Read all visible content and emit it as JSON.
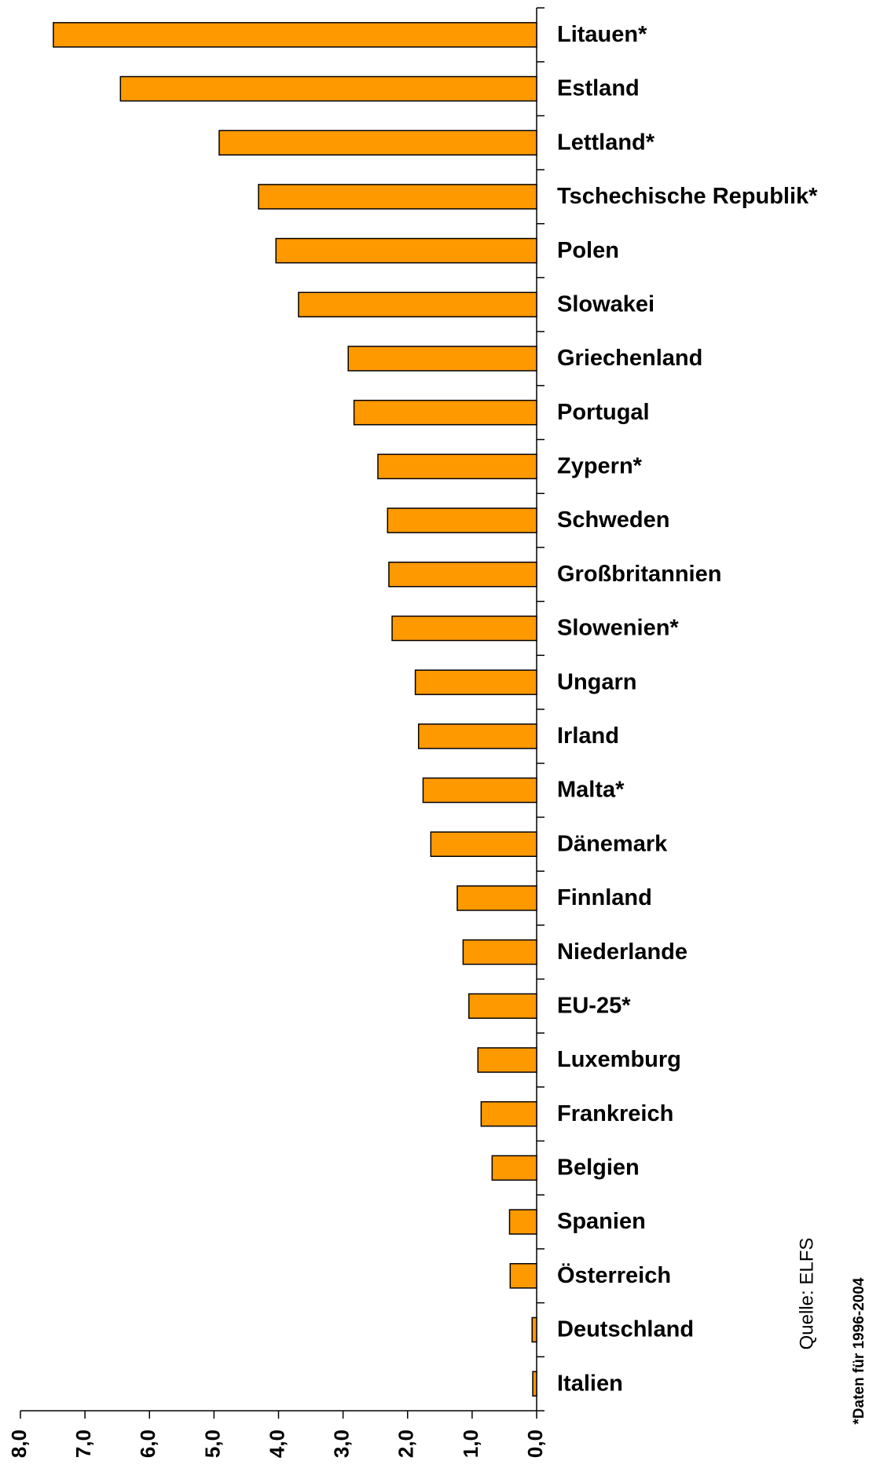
{
  "chart_data": {
    "type": "bar",
    "orientation": "horizontal",
    "reversed_x": true,
    "categories": [
      "Litauen*",
      "Estland",
      "Lettland*",
      "Tschechische Republik*",
      "Polen",
      "Slowakei",
      "Griechenland",
      "Portugal",
      "Zypern*",
      "Schweden",
      "Großbritannien",
      "Slowenien*",
      "Ungarn",
      "Irland",
      "Malta*",
      "Dänemark",
      "Finnland",
      "Niederlande",
      "EU-25*",
      "Luxemburg",
      "Frankreich",
      "Belgien",
      "Spanien",
      "Österreich",
      "Deutschland",
      "Italien"
    ],
    "values": [
      7.49,
      6.45,
      4.92,
      4.31,
      4.04,
      3.69,
      2.92,
      2.83,
      2.46,
      2.31,
      2.29,
      2.24,
      1.88,
      1.83,
      1.76,
      1.64,
      1.23,
      1.14,
      1.05,
      0.91,
      0.86,
      0.69,
      0.42,
      0.41,
      0.07,
      0.06
    ],
    "color": "#ff9900",
    "xlim": [
      0,
      8
    ],
    "xticks": [
      {
        "value": 8,
        "label": "8,0"
      },
      {
        "value": 7,
        "label": "7,0"
      },
      {
        "value": 6,
        "label": "6,0"
      },
      {
        "value": 5,
        "label": "5,0"
      },
      {
        "value": 4,
        "label": "4,0"
      },
      {
        "value": 3,
        "label": "3,0"
      },
      {
        "value": 2,
        "label": "2,0"
      },
      {
        "value": 1,
        "label": "1,0"
      },
      {
        "value": 0,
        "label": "0,0"
      }
    ],
    "source": "Quelle: ELFS",
    "footnote": "*Daten für 1996-2004"
  }
}
